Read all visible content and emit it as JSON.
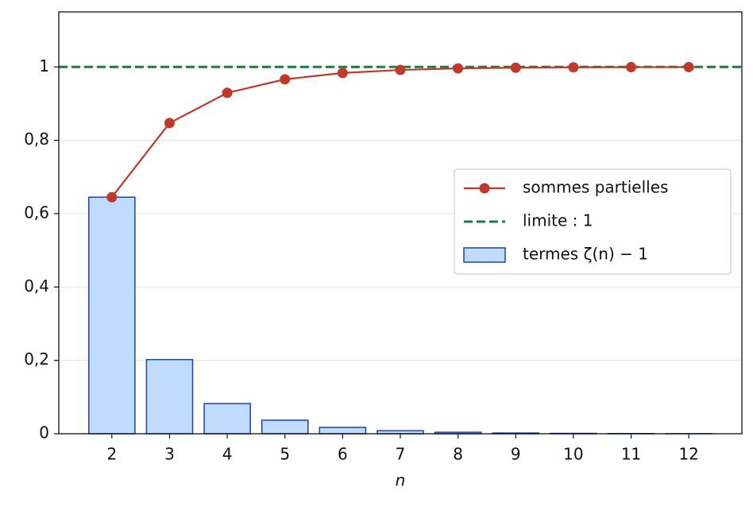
{
  "chart_data": {
    "type": "bar",
    "x_label": "n",
    "x": [
      2,
      3,
      4,
      5,
      6,
      7,
      8,
      9,
      10,
      11,
      12
    ],
    "series": [
      {
        "name": "termes ζ(n) − 1",
        "type": "bar",
        "color": "#bfdbfe",
        "edgecolor": "#1e40af",
        "values": [
          0.6449,
          0.2021,
          0.0823,
          0.0369,
          0.0173,
          0.0083,
          0.0041,
          0.002,
          0.001,
          0.0005,
          0.0002
        ]
      },
      {
        "name": "sommes partielles",
        "type": "line",
        "color": "#c0392b",
        "values": [
          0.6449,
          0.847,
          0.9293,
          0.9662,
          0.9835,
          0.9918,
          0.9959,
          0.9979,
          0.9989,
          0.9994,
          0.9996
        ]
      }
    ],
    "hline": {
      "name": "limite : 1",
      "value": 1,
      "color": "#1a7f3c"
    },
    "xlim": [
      1.08,
      12.92
    ],
    "xticks": [
      2,
      3,
      4,
      5,
      6,
      7,
      8,
      9,
      10,
      11,
      12
    ],
    "ylim": [
      0,
      1.15
    ],
    "yticks": [
      0,
      {
        "value": 0.2,
        "label": "0,2"
      },
      {
        "value": 0.4,
        "label": "0,4"
      },
      {
        "value": 0.6,
        "label": "0,6"
      },
      {
        "value": 0.8,
        "label": "0,8"
      },
      1
    ],
    "grid": true,
    "legend": "center right"
  }
}
